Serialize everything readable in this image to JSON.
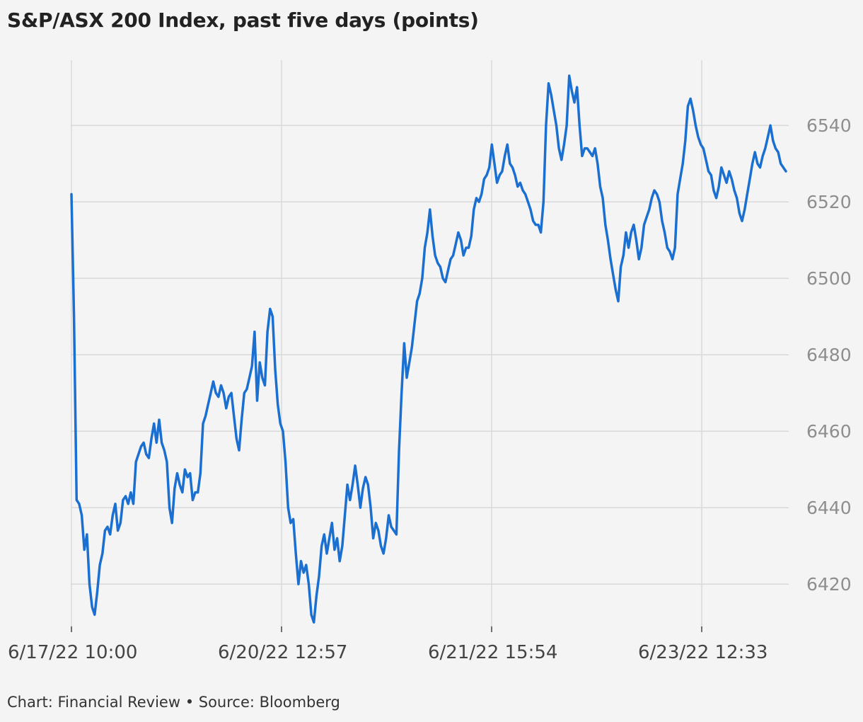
{
  "title": "S&P/ASX 200 Index, past five days (points)",
  "source": "Chart: Financial Review • Source: Bloomberg",
  "colors": {
    "line": "#1a6fd0",
    "grid": "#d9d9d9",
    "background": "#f4f4f4"
  },
  "chart_data": {
    "type": "line",
    "title": "S&P/ASX 200 Index, past five days (points)",
    "xlabel": "",
    "ylabel": "",
    "ylim": [
      6408,
      6558
    ],
    "y_ticks": [
      6420,
      6440,
      6460,
      6480,
      6500,
      6520,
      6540
    ],
    "y_tick_labels": [
      "6420",
      "6440",
      "6460",
      "6480",
      "6500",
      "6520",
      "6540"
    ],
    "x_tick_labels": [
      "6/17/22 10:00",
      "6/20/22 12:57",
      "6/21/22 15:54",
      "6/23/22 12:33"
    ],
    "y_axis_side": "right",
    "grid": true,
    "legend": "none",
    "series": [
      {
        "name": "",
        "values": [
          6522,
          6490,
          6442,
          6441,
          6438,
          6429,
          6433,
          6420,
          6414,
          6412,
          6418,
          6425,
          6428,
          6434,
          6435,
          6433,
          6438,
          6441,
          6434,
          6436,
          6442,
          6443,
          6441,
          6444,
          6441,
          6452,
          6454,
          6456,
          6457,
          6454,
          6453,
          6458,
          6462,
          6457,
          6463,
          6457,
          6455,
          6452,
          6440,
          6436,
          6445,
          6449,
          6446,
          6444,
          6450,
          6448,
          6449,
          6442,
          6444,
          6444,
          6449,
          6462,
          6464,
          6467,
          6470,
          6473,
          6470,
          6469,
          6472,
          6470,
          6466,
          6469,
          6470,
          6464,
          6458,
          6455,
          6463,
          6470,
          6471,
          6474,
          6477,
          6486,
          6468,
          6478,
          6474,
          6472,
          6486,
          6492,
          6490,
          6476,
          6467,
          6462,
          6460,
          6452,
          6440,
          6436,
          6437,
          6428,
          6420,
          6426,
          6423,
          6425,
          6420,
          6412,
          6410,
          6417,
          6422,
          6430,
          6433,
          6428,
          6432,
          6436,
          6429,
          6432,
          6426,
          6430,
          6438,
          6446,
          6442,
          6446,
          6451,
          6446,
          6440,
          6445,
          6448,
          6446,
          6440,
          6432,
          6436,
          6434,
          6430,
          6428,
          6432,
          6438,
          6435,
          6434,
          6433,
          6455,
          6470,
          6483,
          6474,
          6478,
          6482,
          6488,
          6494,
          6496,
          6500,
          6508,
          6512,
          6518,
          6511,
          6506,
          6504,
          6503,
          6500,
          6499,
          6502,
          6505,
          6506,
          6509,
          6512,
          6510,
          6506,
          6508,
          6508,
          6511,
          6518,
          6521,
          6520,
          6522,
          6526,
          6527,
          6529,
          6535,
          6530,
          6525,
          6527,
          6528,
          6532,
          6535,
          6530,
          6529,
          6527,
          6524,
          6525,
          6523,
          6522,
          6520,
          6518,
          6515,
          6514,
          6514,
          6512,
          6520,
          6540,
          6551,
          6548,
          6544,
          6540,
          6534,
          6531,
          6535,
          6540,
          6553,
          6549,
          6546,
          6550,
          6540,
          6532,
          6534,
          6534,
          6533,
          6532,
          6534,
          6530,
          6524,
          6521,
          6514,
          6510,
          6505,
          6501,
          6497,
          6494,
          6503,
          6506,
          6512,
          6508,
          6512,
          6514,
          6510,
          6505,
          6508,
          6514,
          6516,
          6518,
          6521,
          6523,
          6522,
          6520,
          6515,
          6512,
          6508,
          6507,
          6505,
          6508,
          6522,
          6526,
          6530,
          6536,
          6545,
          6547,
          6544,
          6540,
          6537,
          6535,
          6534,
          6531,
          6528,
          6527,
          6523,
          6521,
          6524,
          6529,
          6527,
          6525,
          6528,
          6526,
          6523,
          6521,
          6517,
          6515,
          6518,
          6522,
          6526,
          6530,
          6533,
          6530,
          6529,
          6532,
          6534,
          6537,
          6540,
          6536,
          6534,
          6533,
          6530,
          6529,
          6528
        ]
      }
    ]
  }
}
